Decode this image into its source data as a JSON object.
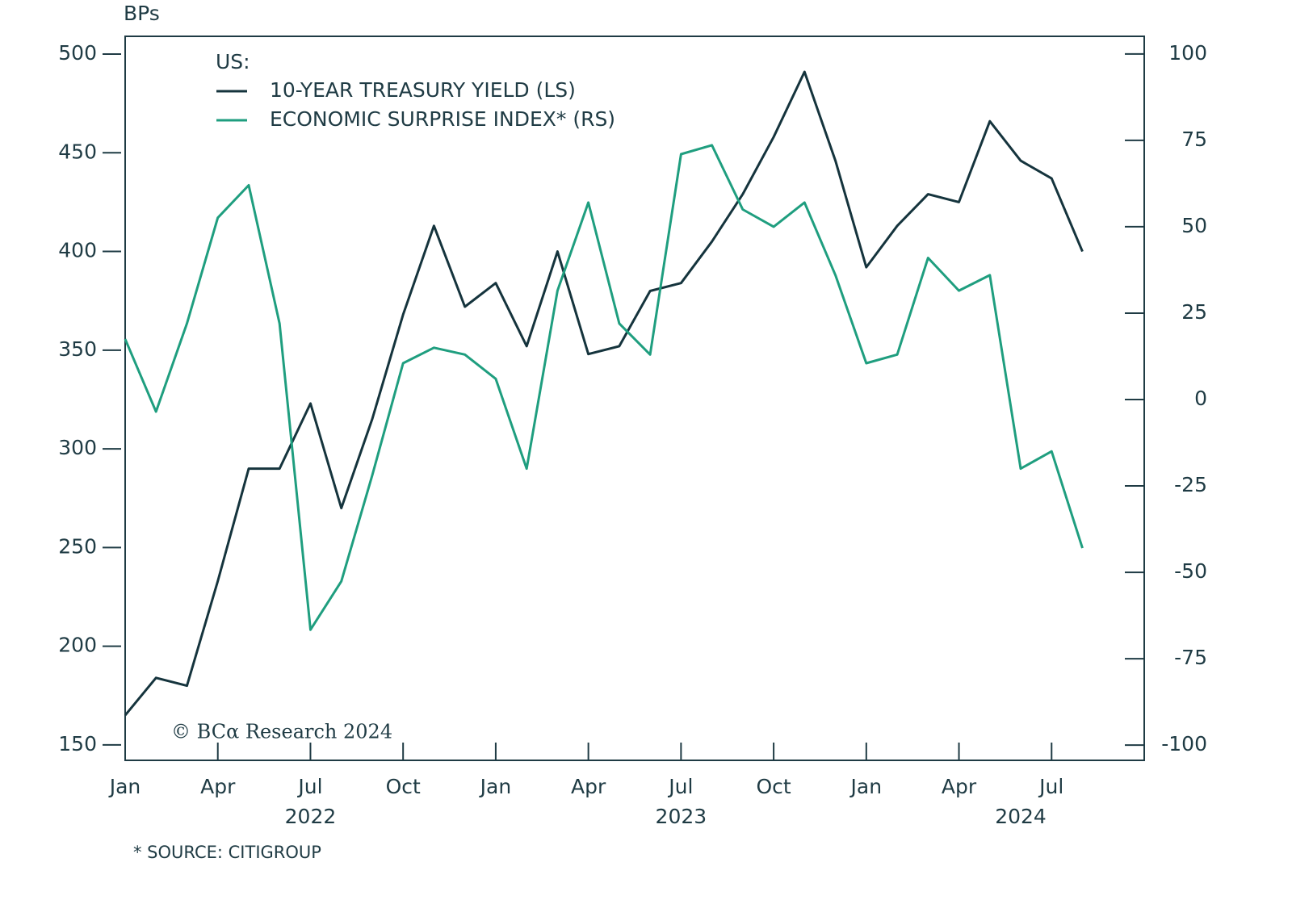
{
  "chart_data": {
    "type": "line",
    "y_axis_label": "BPs",
    "legend_title": "US:",
    "watermark": "© BCα Research 2024",
    "footnote": "* SOURCE: CITIGROUP",
    "x": [
      "2022-01",
      "2022-02",
      "2022-03",
      "2022-04",
      "2022-05",
      "2022-06",
      "2022-07",
      "2022-08",
      "2022-09",
      "2022-10",
      "2022-11",
      "2022-12",
      "2023-01",
      "2023-02",
      "2023-03",
      "2023-04",
      "2023-05",
      "2023-06",
      "2023-07",
      "2023-08",
      "2023-09",
      "2023-10",
      "2023-11",
      "2023-12",
      "2024-01",
      "2024-02",
      "2024-03",
      "2024-04",
      "2024-05",
      "2024-06",
      "2024-07",
      "2024-08"
    ],
    "series": [
      {
        "name": "10-YEAR TREASURY YIELD (LS)",
        "color": "#15343d",
        "axis": "y",
        "values": [
          165,
          184,
          180,
          233,
          290,
          290,
          323,
          270,
          315,
          368,
          413,
          372,
          384,
          352,
          400,
          348,
          352,
          380,
          384,
          405,
          429,
          458,
          491,
          446,
          392,
          413,
          429,
          425,
          466,
          446,
          437,
          400
        ]
      },
      {
        "name": "ECONOMIC SURPRISE INDEX* (RS)",
        "color": "#1f9e7f",
        "axis": "y2",
        "values": [
          17.5,
          -3.5,
          22,
          52.6,
          62,
          22,
          -66.6,
          -52.6,
          -22,
          10.5,
          15,
          13,
          6,
          -20,
          31.5,
          57,
          22,
          13,
          71,
          73.6,
          55,
          50,
          57,
          36,
          10.5,
          13,
          41,
          31.5,
          36,
          -20,
          -15,
          -43
        ]
      }
    ],
    "xlim": [
      "2022-01",
      "2024-10"
    ],
    "xticks": [
      {
        "value": "2022-01",
        "label": "Jan"
      },
      {
        "value": "2022-04",
        "label": "Apr"
      },
      {
        "value": "2022-07",
        "label": "Jul"
      },
      {
        "value": "2022-10",
        "label": "Oct"
      },
      {
        "value": "2023-01",
        "label": "Jan"
      },
      {
        "value": "2023-04",
        "label": "Apr"
      },
      {
        "value": "2023-07",
        "label": "Jul"
      },
      {
        "value": "2023-10",
        "label": "Oct"
      },
      {
        "value": "2024-01",
        "label": "Jan"
      },
      {
        "value": "2024-04",
        "label": "Apr"
      },
      {
        "value": "2024-07",
        "label": "Jul"
      }
    ],
    "year_labels": [
      {
        "value": "2022-07",
        "label": "2022"
      },
      {
        "value": "2023-07",
        "label": "2023"
      },
      {
        "value": "2024-06",
        "label": "2024"
      }
    ],
    "ylim": [
      142.2,
      509
    ],
    "yticks": [
      150,
      200,
      250,
      300,
      350,
      400,
      450,
      500
    ],
    "y2lim": [
      -104.4,
      105.1
    ],
    "y2ticks": [
      -100,
      -75,
      -50,
      -25,
      0,
      25,
      50,
      75,
      100
    ]
  }
}
